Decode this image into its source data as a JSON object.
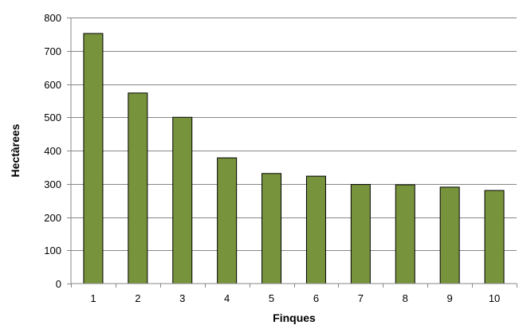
{
  "chart_data": {
    "type": "bar",
    "categories": [
      "1",
      "2",
      "3",
      "4",
      "5",
      "6",
      "7",
      "8",
      "9",
      "10"
    ],
    "values": [
      752,
      573,
      500,
      378,
      331,
      323,
      298,
      297,
      290,
      280
    ],
    "xlabel": "Finques",
    "ylabel": "Hectàrees",
    "ylim": [
      0,
      800
    ],
    "yticks": [
      "0",
      "100",
      "200",
      "300",
      "400",
      "500",
      "600",
      "700",
      "800"
    ],
    "grid": true,
    "legend": "none",
    "bar_color": "#77933c",
    "bar_border_color": "#000000",
    "gridline_color": "#878787"
  }
}
